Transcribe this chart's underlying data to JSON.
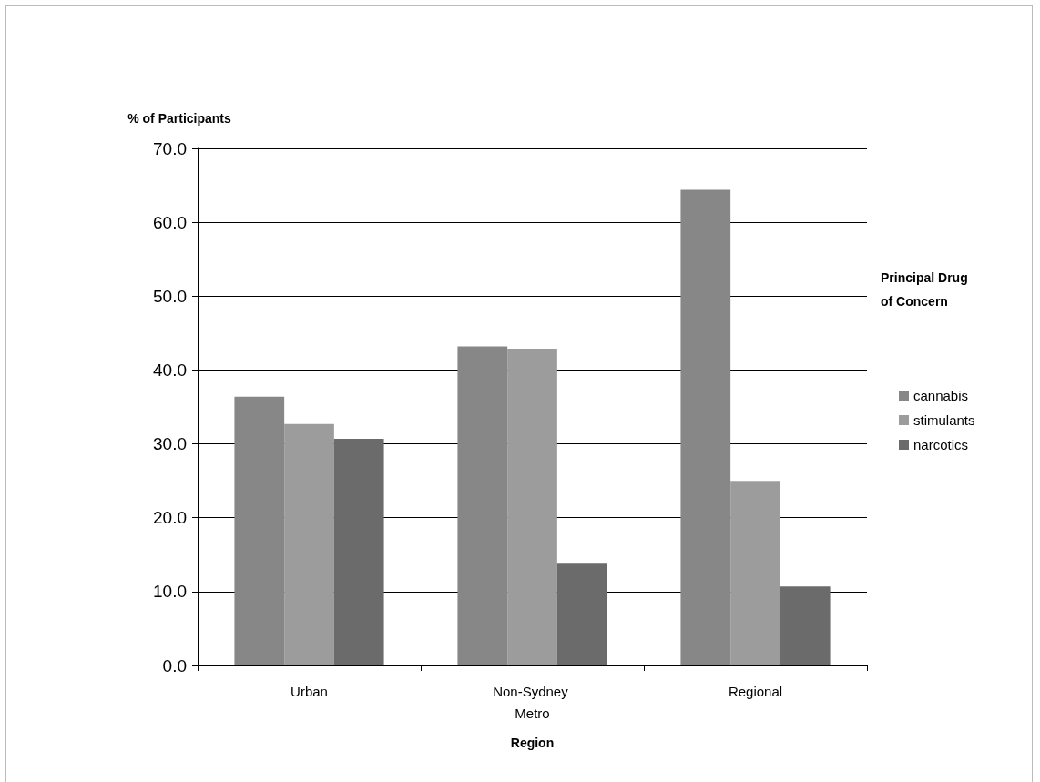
{
  "chart_data": {
    "type": "bar",
    "xlabel": "Region",
    "ylabel": "% of Participants",
    "legend_title": "Principal Drug of Concern",
    "categories": [
      "Urban",
      "Non-Sydney Metro",
      "Regional"
    ],
    "series": [
      {
        "name": "cannabis",
        "color": "#878787",
        "values": [
          36.4,
          43.2,
          64.4
        ]
      },
      {
        "name": "stimulants",
        "color": "#9c9c9c",
        "values": [
          32.7,
          42.9,
          25.0
        ]
      },
      {
        "name": "narcotics",
        "color": "#6b6b6b",
        "values": [
          30.7,
          13.9,
          10.7
        ]
      }
    ],
    "ylim": [
      0,
      70
    ],
    "yticks": [
      {
        "value": 0,
        "label": "0.0"
      },
      {
        "value": 10,
        "label": "10.0"
      },
      {
        "value": 20,
        "label": "20.0"
      },
      {
        "value": 30,
        "label": "30.0"
      },
      {
        "value": 40,
        "label": "40.0"
      },
      {
        "value": 50,
        "label": "50.0"
      },
      {
        "value": 60,
        "label": "60.0"
      },
      {
        "value": 70,
        "label": "70.0"
      }
    ],
    "grid": "y",
    "legend": "right"
  }
}
